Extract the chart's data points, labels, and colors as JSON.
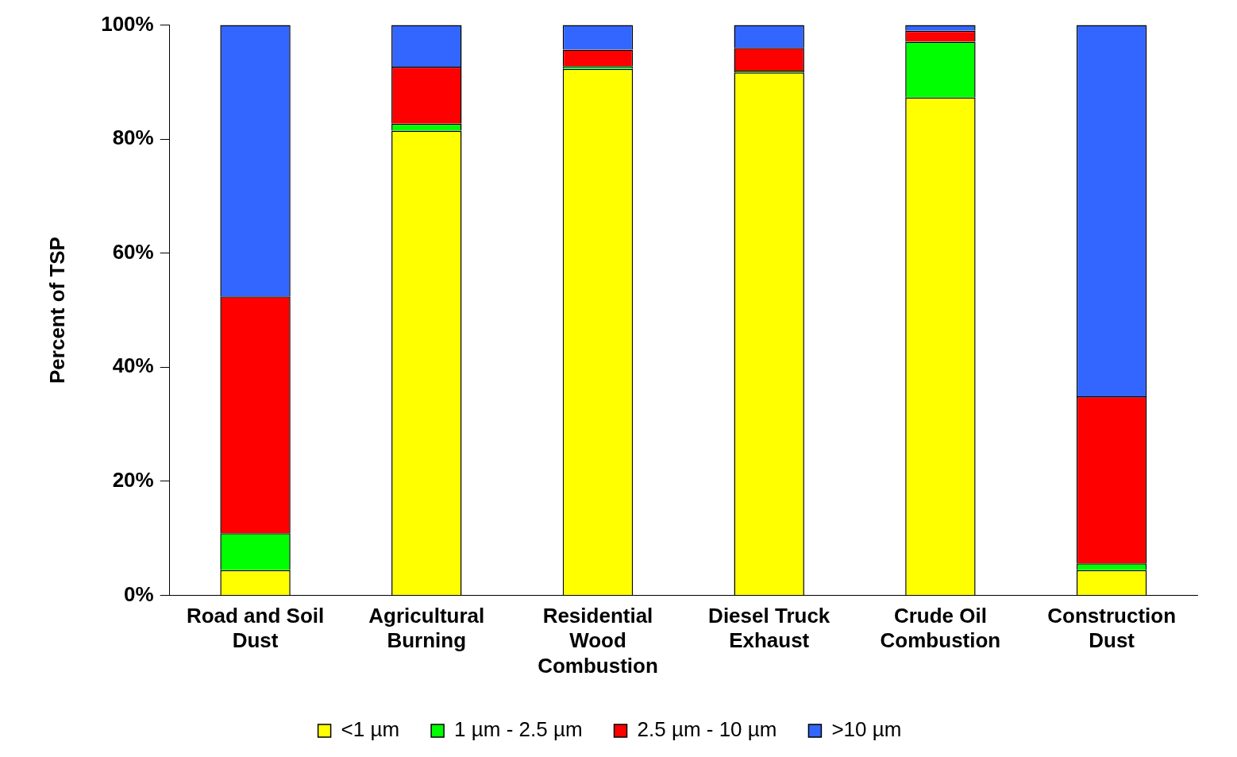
{
  "chart_data": {
    "type": "bar",
    "stacked": true,
    "ylabel": "Percent of TSP",
    "categories": [
      "Road and Soil Dust",
      "Agricultural Burning",
      "Residential Wood Combustion",
      "Diesel Truck Exhaust",
      "Crude Oil Combustion",
      "Construction Dust"
    ],
    "series": [
      {
        "name": "<1 µm",
        "color": "#ffff00",
        "values": [
          4.4,
          81.5,
          92.3,
          91.7,
          87.3,
          4.4
        ]
      },
      {
        "name": "1 µm - 2.5 µm",
        "color": "#00ff00",
        "values": [
          6.5,
          1.2,
          0.5,
          0.3,
          9.8,
          1.2
        ]
      },
      {
        "name": "2.5 µm - 10 µm",
        "color": "#ff0000",
        "values": [
          41.5,
          10.0,
          2.9,
          4.0,
          1.9,
          29.3
        ]
      },
      {
        "name": ">10 µm",
        "color": "#3366ff",
        "values": [
          47.6,
          7.3,
          4.3,
          4.0,
          1.0,
          65.1
        ]
      }
    ],
    "ylim": [
      0,
      100
    ],
    "yticks": [
      {
        "value": 0,
        "label": "0%"
      },
      {
        "value": 20,
        "label": "20%"
      },
      {
        "value": 40,
        "label": "40%"
      },
      {
        "value": 60,
        "label": "60%"
      },
      {
        "value": 80,
        "label": "80%"
      },
      {
        "value": 100,
        "label": "100%"
      }
    ],
    "grid": false,
    "legend": "bottom"
  }
}
